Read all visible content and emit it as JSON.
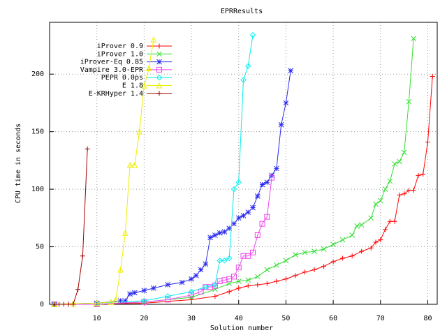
{
  "chart_data": {
    "type": "line",
    "title": "EPRResults",
    "x_label": "Solution number",
    "y_label": "CPU time in seconds",
    "xlim": [
      0,
      82
    ],
    "ylim": [
      0,
      245
    ],
    "xticks": [
      10,
      20,
      30,
      40,
      50,
      60,
      70,
      80
    ],
    "yticks": [
      0,
      50,
      100,
      150,
      200
    ],
    "grid": true,
    "legend": "top-left",
    "series": [
      {
        "name": "iProver 0.9",
        "color": "#ff0000",
        "marker": "plus",
        "x": [
          1,
          10,
          20,
          30,
          35,
          38,
          40,
          42,
          44,
          46,
          48,
          50,
          52,
          54,
          56,
          58,
          60,
          62,
          64,
          66,
          68,
          69,
          70,
          71,
          72,
          73,
          74,
          75,
          76,
          77,
          78,
          79,
          80,
          81
        ],
        "values": [
          0,
          0,
          1,
          4,
          7,
          11,
          14,
          16,
          17,
          18,
          20,
          22,
          25,
          28,
          30,
          33,
          37,
          40,
          42,
          46,
          49,
          54,
          56,
          65,
          72,
          72,
          95,
          96,
          99,
          99,
          112,
          113,
          141,
          198
        ]
      },
      {
        "name": "iProver 1.0",
        "color": "#33dd33",
        "marker": "cross",
        "x": [
          1,
          10,
          20,
          30,
          35,
          38,
          40,
          42,
          44,
          46,
          48,
          50,
          52,
          54,
          56,
          58,
          60,
          62,
          64,
          65,
          66,
          68,
          69,
          70,
          71,
          72,
          73,
          74,
          75,
          76,
          77
        ],
        "values": [
          0,
          0,
          2,
          6,
          13,
          18,
          20,
          21,
          24,
          30,
          34,
          38,
          43,
          45,
          46,
          48,
          52,
          56,
          60,
          68,
          69,
          75,
          87,
          90,
          100,
          107,
          122,
          124,
          132,
          176,
          231
        ]
      },
      {
        "name": "iProver-Eq 0.85",
        "color": "#2a2aee",
        "marker": "star",
        "x": [
          1,
          10,
          15,
          16,
          17,
          18,
          20,
          22,
          25,
          28,
          30,
          31,
          32,
          33,
          34,
          35,
          36,
          37,
          38,
          39,
          40,
          41,
          42,
          43,
          44,
          45,
          46,
          47,
          48,
          49,
          50,
          51
        ],
        "values": [
          0,
          1,
          3,
          3,
          9,
          10,
          12,
          14,
          17,
          19,
          22,
          25,
          30,
          35,
          58,
          60,
          62,
          63,
          66,
          70,
          75,
          77,
          80,
          84,
          94,
          104,
          106,
          112,
          118,
          156,
          175,
          203
        ]
      },
      {
        "name": "Vampire 3.0-EPR",
        "color": "#ee44ee",
        "marker": "square",
        "x": [
          1,
          10,
          20,
          25,
          30,
          32,
          33,
          34,
          35,
          36,
          37,
          38,
          39,
          40,
          41,
          42,
          43,
          44,
          45,
          46,
          47
        ],
        "values": [
          0,
          0,
          2,
          4,
          8,
          11,
          15,
          15,
          16,
          20,
          21,
          22,
          24,
          32,
          42,
          42,
          45,
          60,
          70,
          76,
          110
        ]
      },
      {
        "name": "PEPR 0.0ps",
        "color": "#00eeee",
        "marker": "diamond",
        "x": [
          1,
          10,
          20,
          25,
          30,
          33,
          35,
          36,
          37,
          38,
          39,
          40,
          41,
          42,
          43
        ],
        "values": [
          0,
          1,
          3,
          7,
          11,
          15,
          17,
          38,
          38,
          40,
          100,
          106,
          195,
          207,
          234
        ]
      },
      {
        "name": "E 1.8",
        "color": "#eeee00",
        "marker": "tri",
        "x": [
          1,
          5,
          10,
          13,
          14,
          15,
          16,
          17,
          18,
          19,
          20,
          21,
          22
        ],
        "values": [
          0,
          0.5,
          1,
          2,
          4,
          30,
          62,
          121,
          121,
          150,
          190,
          205,
          230
        ]
      },
      {
        "name": "E-KRHyper 1.4",
        "color": "#a00000",
        "marker": "plus",
        "x": [
          1,
          2,
          3,
          4,
          5,
          6,
          7,
          8
        ],
        "values": [
          0,
          0,
          0,
          0,
          0,
          13,
          42,
          135
        ]
      }
    ]
  }
}
